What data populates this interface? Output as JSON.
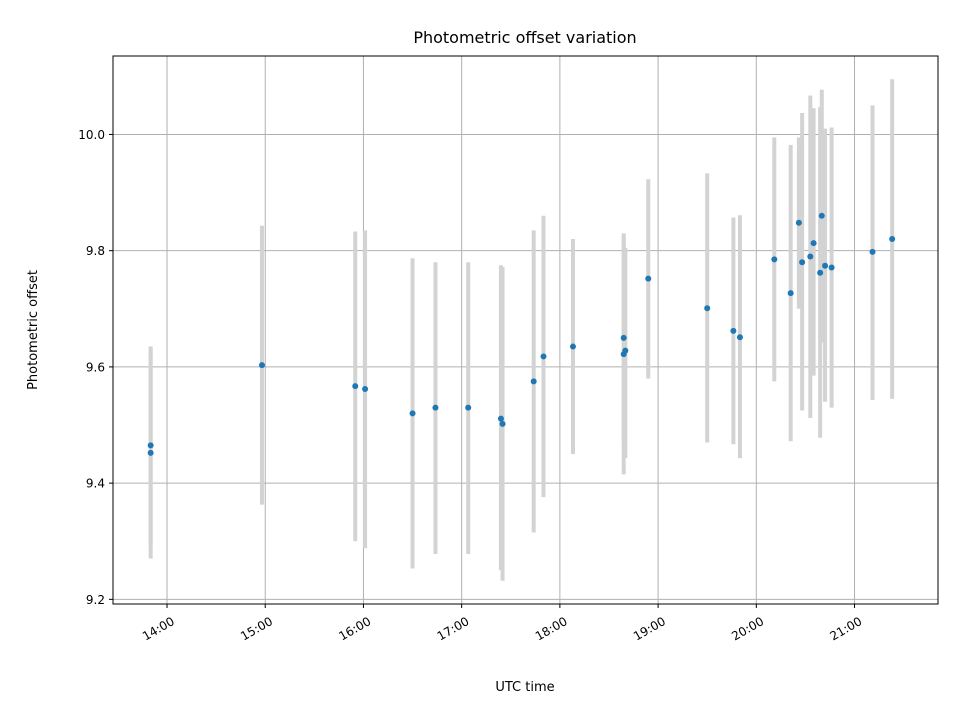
{
  "chart_data": {
    "type": "scatter",
    "title": "Photometric offset variation",
    "xlabel": "UTC time",
    "ylabel": "Photometric offset",
    "xlim": [
      "13:27",
      "21:51"
    ],
    "ylim": [
      9.192,
      10.135
    ],
    "grid": true,
    "x_tick_labels": [
      "14:00",
      "15:00",
      "16:00",
      "17:00",
      "18:00",
      "19:00",
      "20:00",
      "21:00"
    ],
    "y_tick_labels": [
      "9.2",
      "9.4",
      "9.6",
      "9.8",
      "10.0"
    ],
    "colors": {
      "point": "#1f77b4",
      "errorbar": "#d3d3d3",
      "grid": "#b0b0b0"
    },
    "series": [
      {
        "points": [
          {
            "x": "13:50",
            "y": 9.465,
            "ylow": 9.295,
            "yhigh": 9.635
          },
          {
            "x": "13:50",
            "y": 9.452,
            "ylow": 9.27,
            "yhigh": 9.633
          },
          {
            "x": "14:58",
            "y": 9.603,
            "ylow": 9.363,
            "yhigh": 9.843
          },
          {
            "x": "15:55",
            "y": 9.567,
            "ylow": 9.3,
            "yhigh": 9.833
          },
          {
            "x": "16:01",
            "y": 9.562,
            "ylow": 9.288,
            "yhigh": 9.835
          },
          {
            "x": "16:30",
            "y": 9.52,
            "ylow": 9.253,
            "yhigh": 9.787
          },
          {
            "x": "16:44",
            "y": 9.53,
            "ylow": 9.278,
            "yhigh": 9.78
          },
          {
            "x": "17:04",
            "y": 9.53,
            "ylow": 9.278,
            "yhigh": 9.78
          },
          {
            "x": "17:24",
            "y": 9.511,
            "ylow": 9.25,
            "yhigh": 9.775
          },
          {
            "x": "17:25",
            "y": 9.502,
            "ylow": 9.232,
            "yhigh": 9.772
          },
          {
            "x": "17:44",
            "y": 9.575,
            "ylow": 9.315,
            "yhigh": 9.835
          },
          {
            "x": "17:50",
            "y": 9.618,
            "ylow": 9.376,
            "yhigh": 9.86
          },
          {
            "x": "18:08",
            "y": 9.635,
            "ylow": 9.45,
            "yhigh": 9.82
          },
          {
            "x": "18:39",
            "y": 9.65,
            "ylow": 9.47,
            "yhigh": 9.83
          },
          {
            "x": "18:39",
            "y": 9.622,
            "ylow": 9.415,
            "yhigh": 9.825
          },
          {
            "x": "18:40",
            "y": 9.628,
            "ylow": 9.443,
            "yhigh": 9.805
          },
          {
            "x": "18:54",
            "y": 9.752,
            "ylow": 9.58,
            "yhigh": 9.923
          },
          {
            "x": "19:30",
            "y": 9.701,
            "ylow": 9.47,
            "yhigh": 9.933
          },
          {
            "x": "19:46",
            "y": 9.662,
            "ylow": 9.467,
            "yhigh": 9.857
          },
          {
            "x": "19:50",
            "y": 9.651,
            "ylow": 9.443,
            "yhigh": 9.861
          },
          {
            "x": "20:11",
            "y": 9.785,
            "ylow": 9.575,
            "yhigh": 9.995
          },
          {
            "x": "20:21",
            "y": 9.727,
            "ylow": 9.472,
            "yhigh": 9.982
          },
          {
            "x": "20:26",
            "y": 9.848,
            "ylow": 9.7,
            "yhigh": 9.995
          },
          {
            "x": "20:28",
            "y": 9.78,
            "ylow": 9.525,
            "yhigh": 10.037
          },
          {
            "x": "20:33",
            "y": 9.79,
            "ylow": 9.512,
            "yhigh": 10.067
          },
          {
            "x": "20:35",
            "y": 9.813,
            "ylow": 9.585,
            "yhigh": 10.045
          },
          {
            "x": "20:39",
            "y": 9.762,
            "ylow": 9.478,
            "yhigh": 10.047
          },
          {
            "x": "20:40",
            "y": 9.86,
            "ylow": 9.642,
            "yhigh": 10.077
          },
          {
            "x": "20:42",
            "y": 9.774,
            "ylow": 9.54,
            "yhigh": 10.01
          },
          {
            "x": "20:46",
            "y": 9.771,
            "ylow": 9.53,
            "yhigh": 10.012
          },
          {
            "x": "21:11",
            "y": 9.798,
            "ylow": 9.543,
            "yhigh": 10.05
          },
          {
            "x": "21:23",
            "y": 9.82,
            "ylow": 9.545,
            "yhigh": 10.095
          }
        ]
      }
    ]
  }
}
